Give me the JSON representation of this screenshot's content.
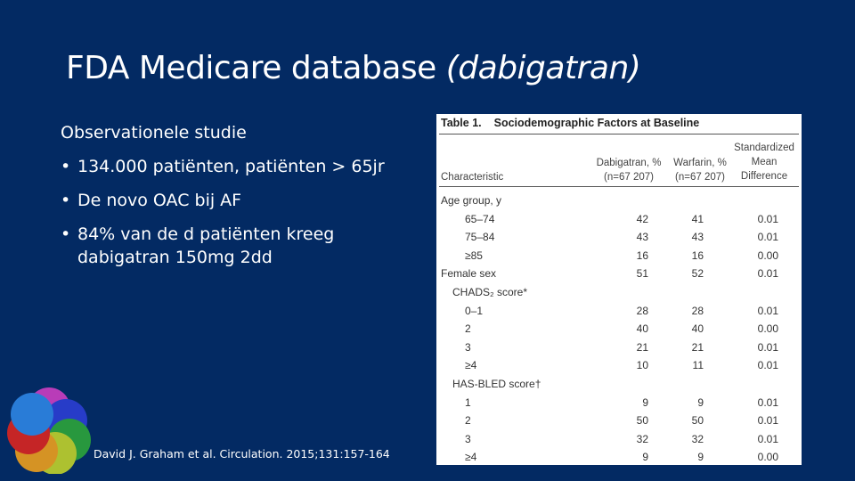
{
  "slide": {
    "title_main": "FDA Medicare database",
    "title_italic": "(dabigatran)",
    "heading": "Observationele studie",
    "bullets": [
      "134.000 patiënten, patiënten > 65jr",
      "De novo OAC bij AF",
      "84% van de d patiënten kreeg dabigatran 150mg 2dd"
    ],
    "bullet_glyph": "•",
    "citation": "David J. Graham et al. Circulation. 2015;131:157-164",
    "logo_icon": "colored-circles-logo-icon",
    "background_color": "#032a63"
  },
  "table": {
    "label": "Table 1.",
    "title": "Sociodemographic Factors at Baseline",
    "headers": {
      "characteristic": "Characteristic",
      "dabigatran": "Dabigatran, %",
      "dabigatran_n": "(n=67 207)",
      "warfarin": "Warfarin, %",
      "warfarin_n": "(n=67 207)",
      "smd_1": "Standardized",
      "smd_2": "Mean",
      "smd_3": "Difference"
    },
    "rows": [
      {
        "label": "Age group, y",
        "dabigatran": "",
        "warfarin": "",
        "smd": "",
        "level": "group"
      },
      {
        "label": "65–74",
        "dabigatran": "42",
        "warfarin": "41",
        "smd": "0.01",
        "level": "item"
      },
      {
        "label": "75–84",
        "dabigatran": "43",
        "warfarin": "43",
        "smd": "0.01",
        "level": "item"
      },
      {
        "label": "≥85",
        "dabigatran": "16",
        "warfarin": "16",
        "smd": "0.00",
        "level": "item"
      },
      {
        "label": "Female sex",
        "dabigatran": "51",
        "warfarin": "52",
        "smd": "0.01",
        "level": "group"
      },
      {
        "label": "CHADS₂ score*",
        "dabigatran": "",
        "warfarin": "",
        "smd": "",
        "level": "sub"
      },
      {
        "label": "0–1",
        "dabigatran": "28",
        "warfarin": "28",
        "smd": "0.01",
        "level": "item"
      },
      {
        "label": "2",
        "dabigatran": "40",
        "warfarin": "40",
        "smd": "0.00",
        "level": "item"
      },
      {
        "label": "3",
        "dabigatran": "21",
        "warfarin": "21",
        "smd": "0.01",
        "level": "item"
      },
      {
        "label": "≥4",
        "dabigatran": "10",
        "warfarin": "11",
        "smd": "0.01",
        "level": "item"
      },
      {
        "label": "HAS-BLED score†",
        "dabigatran": "",
        "warfarin": "",
        "smd": "",
        "level": "sub"
      },
      {
        "label": "1",
        "dabigatran": "9",
        "warfarin": "9",
        "smd": "0.01",
        "level": "item"
      },
      {
        "label": "2",
        "dabigatran": "50",
        "warfarin": "50",
        "smd": "0.01",
        "level": "item"
      },
      {
        "label": "3",
        "dabigatran": "32",
        "warfarin": "32",
        "smd": "0.01",
        "level": "item"
      },
      {
        "label": "≥4",
        "dabigatran": "9",
        "warfarin": "9",
        "smd": "0.00",
        "level": "item"
      }
    ]
  }
}
